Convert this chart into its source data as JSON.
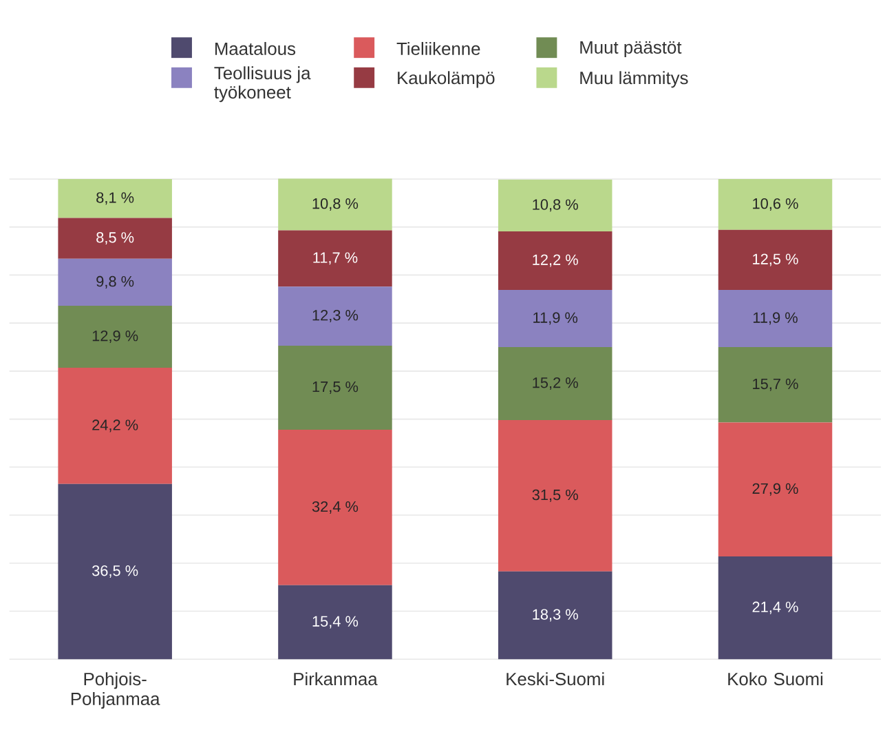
{
  "chart_data": {
    "type": "bar",
    "stacked": true,
    "legend": "top",
    "grid": "y",
    "tick_labels": "x",
    "categories": [
      "Pohjois-Pohjanmaa",
      "Pirkanmaa",
      "Keski-Suomi",
      "Koko Suomi"
    ],
    "series": [
      {
        "name": "Maatalous",
        "color": "#4f4a6e",
        "values": [
          36.5,
          15.4,
          18.3,
          21.4
        ],
        "value_labels": [
          "36,5 %",
          "15,4 %",
          "18,3 %",
          "21,4 %"
        ]
      },
      {
        "name": "Tieliikenne",
        "color": "#da5a5c",
        "values": [
          24.2,
          32.4,
          31.5,
          27.9
        ],
        "value_labels": [
          "24,2 %",
          "32,4 %",
          "31,5 %",
          "27,9 %"
        ]
      },
      {
        "name": "Muut päästöt",
        "color": "#718c54",
        "values": [
          12.9,
          17.5,
          15.2,
          15.7
        ],
        "value_labels": [
          "12,9 %",
          "17,5 %",
          "15,2 %",
          "15,7 %"
        ]
      },
      {
        "name": "Teollisuus ja työkoneet",
        "color": "#8b82c0",
        "values": [
          9.8,
          12.3,
          11.9,
          11.9
        ],
        "value_labels": [
          "9,8 %",
          "12,3 %",
          "11,9 %",
          "11,9 %"
        ]
      },
      {
        "name": "Kaukolämpö",
        "color": "#963b43",
        "values": [
          8.5,
          11.7,
          12.2,
          12.5
        ],
        "value_labels": [
          "8,5 %",
          "11,7 %",
          "12,2 %",
          "12,5 %"
        ]
      },
      {
        "name": "Muu lämmitys",
        "color": "#bad88c",
        "values": [
          8.1,
          10.8,
          10.8,
          10.6
        ],
        "value_labels": [
          "8,1 %",
          "10,8 %",
          "10,8 %",
          "10,6 %"
        ]
      }
    ]
  }
}
